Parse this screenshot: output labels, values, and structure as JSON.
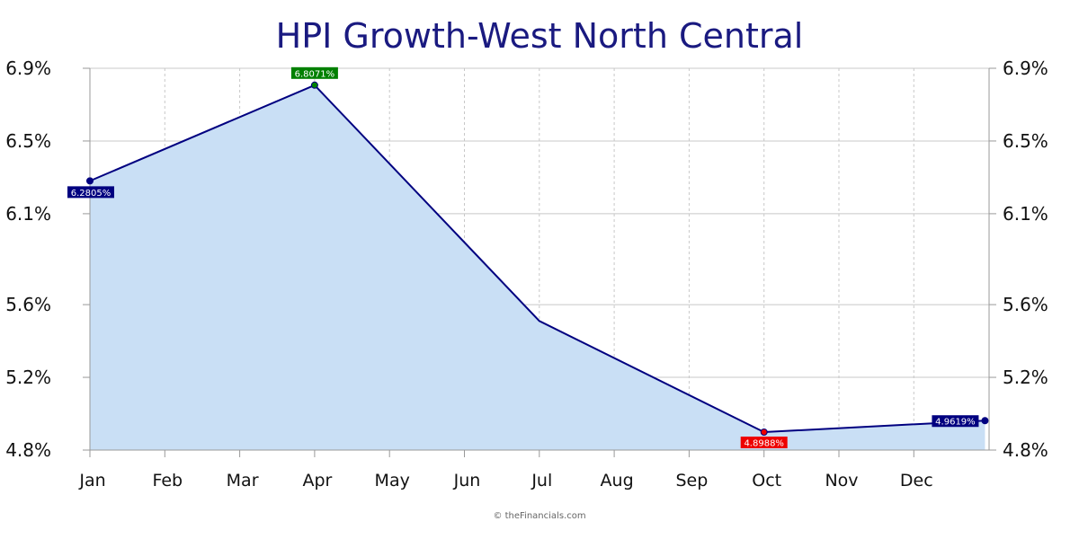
{
  "chart_data": {
    "type": "area",
    "title": "HPI Growth-West North Central",
    "categories": [
      "Jan",
      "Feb",
      "Mar",
      "Apr",
      "May",
      "Jun",
      "Jul",
      "Aug",
      "Sep",
      "Oct",
      "Nov",
      "Dec"
    ],
    "x": [
      0,
      3,
      6,
      9,
      11.95
    ],
    "values": [
      6.2805,
      6.8071,
      5.51,
      4.8988,
      4.9619
    ],
    "ylim": [
      4.8,
      6.9
    ],
    "yticks": [
      "6.9%",
      "6.5%",
      "6.1%",
      "5.6%",
      "5.2%",
      "4.8%"
    ],
    "ytick_values": [
      6.9,
      6.5,
      6.1,
      5.6,
      5.2,
      4.8
    ],
    "xlabel": "",
    "ylabel": "",
    "grid": true,
    "data_labels": [
      {
        "index": 0,
        "text": "6.2805%",
        "color": "#000080"
      },
      {
        "index": 1,
        "text": "6.8071%",
        "color": "#008000"
      },
      {
        "index": 3,
        "text": "4.8988%",
        "color": "#ee0000"
      },
      {
        "index": 4,
        "text": "4.9619%",
        "color": "#000080"
      }
    ],
    "line_color": "#000080",
    "fill_color": "#c9dff5"
  },
  "footer": {
    "credit": "© theFinancials.com"
  }
}
